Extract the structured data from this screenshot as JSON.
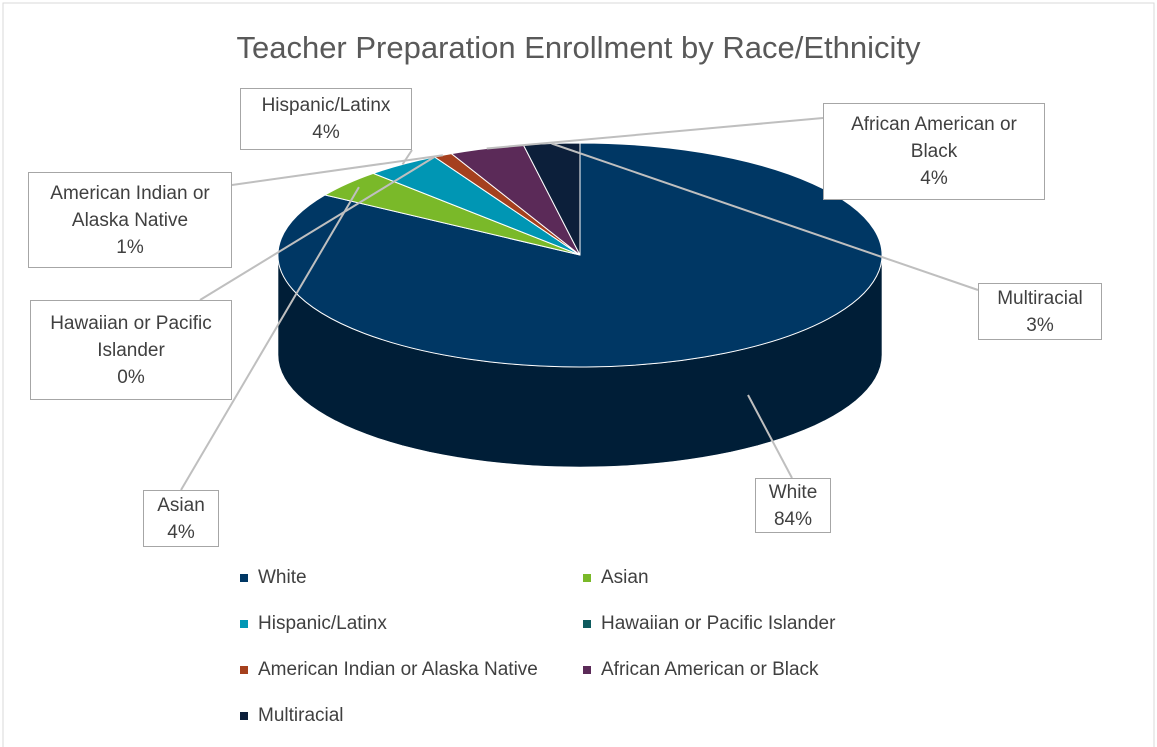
{
  "chart_data": {
    "type": "pie",
    "title": "Teacher Preparation Enrollment by Race/Ethnicity",
    "categories": [
      "White",
      "Asian",
      "Hispanic/Latinx",
      "Hawaiian or Pacific Islander",
      "American Indian or Alaska Native",
      "African American or Black",
      "Multiracial"
    ],
    "values": [
      84,
      4,
      4,
      0,
      1,
      4,
      3
    ],
    "value_labels": [
      "84%",
      "4%",
      "4%",
      "0%",
      "1%",
      "4%",
      "3%"
    ],
    "colors": [
      "#003764",
      "#7ab929",
      "#0096b4",
      "#0e5b5e",
      "#a5401e",
      "#5b2a58",
      "#0c1f3a"
    ],
    "legend": "bottom"
  }
}
